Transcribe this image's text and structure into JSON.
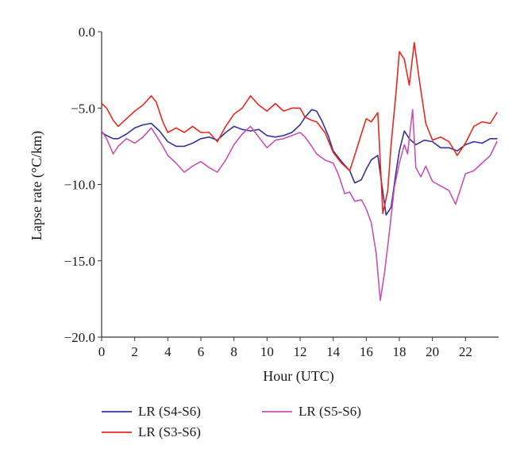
{
  "chart_data": {
    "type": "line",
    "title": "",
    "xlabel": "Hour (UTC)",
    "ylabel": "Lapse rate (°C/km)",
    "xlim": [
      0,
      24
    ],
    "ylim": [
      -20,
      0
    ],
    "x_ticks": [
      0,
      2,
      4,
      6,
      8,
      10,
      12,
      14,
      16,
      18,
      20,
      22
    ],
    "x_tick_labels": [
      "0",
      "2",
      "4",
      "6",
      "8",
      "10",
      "12",
      "14",
      "16",
      "18",
      "20",
      "22"
    ],
    "y_ticks": [
      0,
      -5,
      -10,
      -15,
      -20
    ],
    "y_tick_labels": [
      "0.0",
      "−5.0",
      "−10.0",
      "−15.0",
      "−20.0"
    ],
    "grid": false,
    "legend_position": "bottom",
    "series": [
      {
        "name": "LR (S4-S6)",
        "color": "#33339a",
        "x": [
          0,
          0.3,
          0.7,
          1.0,
          1.5,
          2.0,
          2.5,
          3.0,
          3.5,
          4.0,
          4.5,
          5.0,
          5.5,
          6.0,
          6.5,
          7.0,
          7.5,
          8.0,
          8.5,
          9.0,
          9.5,
          10.0,
          10.5,
          11.0,
          11.5,
          12.0,
          12.3,
          12.7,
          13.0,
          13.3,
          13.7,
          14.0,
          14.5,
          15.0,
          15.3,
          15.7,
          16.0,
          16.3,
          16.7,
          17.0,
          17.2,
          17.5,
          17.8,
          18.0,
          18.3,
          18.6,
          19.0,
          19.5,
          20.0,
          20.5,
          21.0,
          21.5,
          22.0,
          22.5,
          23.0,
          23.5,
          23.9
        ],
        "values": [
          -6.6,
          -6.8,
          -7.0,
          -7.0,
          -6.7,
          -6.3,
          -6.1,
          -6.0,
          -6.5,
          -7.2,
          -7.5,
          -7.5,
          -7.3,
          -7.0,
          -6.9,
          -7.1,
          -6.6,
          -6.2,
          -6.4,
          -6.5,
          -6.4,
          -6.8,
          -6.9,
          -6.8,
          -6.6,
          -6.1,
          -5.6,
          -5.1,
          -5.2,
          -5.8,
          -6.8,
          -7.8,
          -8.5,
          -9.1,
          -9.9,
          -9.7,
          -9.0,
          -8.4,
          -8.1,
          -10.5,
          -12.0,
          -11.5,
          -9.2,
          -7.8,
          -6.5,
          -7.0,
          -7.4,
          -7.1,
          -7.2,
          -7.6,
          -7.6,
          -7.8,
          -7.4,
          -7.2,
          -7.3,
          -7.0,
          -7.0
        ]
      },
      {
        "name": "LR (S3-S6)",
        "color": "#e6281e",
        "x": [
          0,
          0.3,
          0.7,
          1.0,
          1.5,
          2.0,
          2.5,
          3.0,
          3.3,
          3.7,
          4.0,
          4.5,
          5.0,
          5.5,
          6.0,
          6.5,
          7.0,
          7.5,
          8.0,
          8.5,
          9.0,
          9.5,
          10.0,
          10.5,
          11.0,
          11.5,
          12.0,
          12.3,
          12.7,
          13.0,
          13.5,
          14.0,
          14.5,
          15.0,
          15.3,
          15.7,
          16.0,
          16.3,
          16.7,
          17.0,
          17.3,
          17.5,
          17.8,
          18.0,
          18.3,
          18.6,
          18.9,
          19.2,
          19.6,
          20.0,
          20.5,
          21.0,
          21.5,
          22.0,
          22.5,
          23.0,
          23.5,
          23.9
        ],
        "values": [
          -4.7,
          -5.0,
          -5.8,
          -6.2,
          -5.7,
          -5.2,
          -4.8,
          -4.2,
          -4.6,
          -5.9,
          -6.6,
          -6.3,
          -6.6,
          -6.2,
          -6.6,
          -6.6,
          -7.2,
          -6.2,
          -5.4,
          -5.0,
          -4.2,
          -4.8,
          -5.2,
          -4.7,
          -5.2,
          -5.0,
          -5.0,
          -5.6,
          -5.8,
          -5.9,
          -6.6,
          -7.9,
          -8.6,
          -9.1,
          -8.1,
          -6.7,
          -5.7,
          -5.9,
          -5.3,
          -11.9,
          -10.4,
          -7.4,
          -4.0,
          -1.3,
          -1.8,
          -3.5,
          -0.7,
          -3.1,
          -6.0,
          -7.1,
          -6.9,
          -7.2,
          -8.1,
          -7.3,
          -6.2,
          -5.9,
          -6.0,
          -5.3
        ]
      },
      {
        "name": "LR (S5-S6)",
        "color": "#c651b8",
        "x": [
          0,
          0.3,
          0.7,
          1.0,
          1.5,
          2.0,
          2.5,
          3.0,
          3.3,
          3.7,
          4.0,
          4.5,
          5.0,
          5.5,
          6.0,
          6.5,
          7.0,
          7.5,
          8.0,
          8.5,
          9.0,
          9.5,
          10.0,
          10.5,
          11.0,
          11.5,
          12.0,
          12.3,
          12.7,
          13.0,
          13.5,
          14.0,
          14.3,
          14.7,
          15.0,
          15.3,
          15.7,
          16.0,
          16.3,
          16.6,
          16.85,
          17.1,
          17.4,
          17.7,
          18.0,
          18.3,
          18.5,
          18.8,
          19.0,
          19.3,
          19.6,
          20.0,
          20.5,
          21.0,
          21.4,
          21.7,
          22.0,
          22.5,
          23.0,
          23.5,
          23.9
        ],
        "values": [
          -6.5,
          -7.0,
          -8.0,
          -7.5,
          -7.0,
          -7.3,
          -6.9,
          -6.3,
          -6.8,
          -7.5,
          -8.1,
          -8.6,
          -9.2,
          -8.8,
          -8.5,
          -8.9,
          -9.2,
          -8.4,
          -7.4,
          -6.7,
          -6.2,
          -6.9,
          -7.6,
          -7.1,
          -7.0,
          -6.8,
          -6.6,
          -6.9,
          -7.5,
          -8.0,
          -8.4,
          -8.6,
          -9.3,
          -10.6,
          -10.5,
          -11.1,
          -11.0,
          -11.6,
          -12.5,
          -14.5,
          -17.6,
          -15.8,
          -13.1,
          -10.2,
          -8.6,
          -7.4,
          -8.0,
          -5.1,
          -8.9,
          -9.5,
          -8.8,
          -9.8,
          -10.1,
          -10.4,
          -11.3,
          -10.3,
          -9.3,
          -9.1,
          -8.6,
          -8.1,
          -7.2
        ]
      }
    ]
  }
}
